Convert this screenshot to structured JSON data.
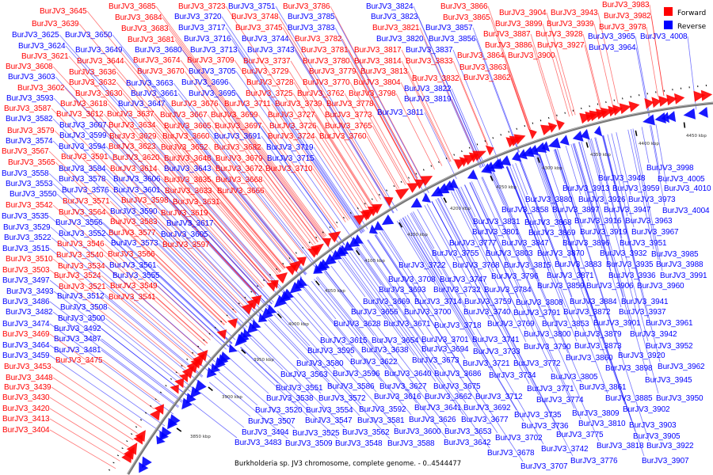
{
  "legend": {
    "forward_label": "Forward",
    "reverse_label": "Reverse",
    "forward_color": "#ff0000",
    "reverse_color": "#0000ff"
  },
  "caption": "Burkholderia sp. JV3 chromosome, complete genome. - 0..4544477",
  "ticks": [
    "3850 kbp",
    "3900 kbp",
    "3950 kbp",
    "4000 kbp",
    "4050 kbp",
    "4100 kbp",
    "4150 kbp",
    "4200 kbp",
    "4250 kbp",
    "4300 kbp",
    "4350 kbp",
    "4400 kbp",
    "4450 kbp"
  ],
  "forward_labels": [
    "BurJV3_3645",
    "BurJV3_3639",
    "BurJV3_3621",
    "BurJV3_3608",
    "BurJV3_3602",
    "BurJV3_3587",
    "BurJV3_3579",
    "BurJV3_3567",
    "BurJV3_3565",
    "BurJV3_3542",
    "BurJV3_3510",
    "BurJV3_3503",
    "BurJV3_3469",
    "BurJV3_3453",
    "BurJV3_3448",
    "BurJV3_3439",
    "BurJV3_3430",
    "BurJV3_3420",
    "BurJV3_3413",
    "BurJV3_3404",
    "BurJV3_3644",
    "BurJV3_3636",
    "BurJV3_3632",
    "BurJV3_3630",
    "BurJV3_3618",
    "BurJV3_3612",
    "BurJV3_3591",
    "BurJV3_3571",
    "BurJV3_3564",
    "BurJV3_3546",
    "BurJV3_3540",
    "BurJV3_3534",
    "BurJV3_3524",
    "BurJV3_3521",
    "BurJV3_3475",
    "BurJV3_3685",
    "BurJV3_3684",
    "BurJV3_3683",
    "BurJV3_3681",
    "BurJV3_3674",
    "BurJV3_3670",
    "BurJV3_3637",
    "BurJV3_3634",
    "BurJV3_3629",
    "BurJV3_3623",
    "BurJV3_3620",
    "BurJV3_3614",
    "BurJV3_3598",
    "BurJV3_3583",
    "BurJV3_3577",
    "BurJV3_3566",
    "BurJV3_3549",
    "BurJV3_3541",
    "BurJV3_3723",
    "BurJV3_3709",
    "BurJV3_3676",
    "BurJV3_3667",
    "BurJV3_3665",
    "BurJV3_3660",
    "BurJV3_3652",
    "BurJV3_3648",
    "BurJV3_3635",
    "BurJV3_3633",
    "BurJV3_3631",
    "BurJV3_3619",
    "BurJV3_3597",
    "BurJV3_3748",
    "BurJV3_3745",
    "BurJV3_3737",
    "BurJV3_3729",
    "BurJV3_3728",
    "BurJV3_3725",
    "BurJV3_3711",
    "BurJV3_3699",
    "BurJV3_3697",
    "BurJV3_3682",
    "BurJV3_3679",
    "BurJV3_3672",
    "BurJV3_3668",
    "BurJV3_3666",
    "BurJV3_3786",
    "BurJV3_3782",
    "BurJV3_3781",
    "BurJV3_3780",
    "BurJV3_3779",
    "BurJV3_3770",
    "BurJV3_3762",
    "BurJV3_3739",
    "BurJV3_3727",
    "BurJV3_3726",
    "BurJV3_3724",
    "BurJV3_3710",
    "BurJV3_3778",
    "BurJV3_3773",
    "BurJV3_3765",
    "BurJV3_3760",
    "BurJV3_3821",
    "BurJV3_3817",
    "BurJV3_3814",
    "BurJV3_3813",
    "BurJV3_3804",
    "BurJV3_3798",
    "BurJV3_3833",
    "BurJV3_3832",
    "BurJV3_3866",
    "BurJV3_3865",
    "BurJV3_3904",
    "BurJV3_3899",
    "BurJV3_3887",
    "BurJV3_3886",
    "BurJV3_3864",
    "BurJV3_3900",
    "BurJV3_3863",
    "BurJV3_3862",
    "BurJV3_3943",
    "BurJV3_3939",
    "BurJV3_3928",
    "BurJV3_3927",
    "BurJV3_3983",
    "BurJV3_3982",
    "BurJV3_3978"
  ],
  "reverse_labels": [
    "BurJV3_3625",
    "BurJV3_3624",
    "BurJV3_3603",
    "BurJV3_3593",
    "BurJV3_3582",
    "BurJV3_3574",
    "BurJV3_3558",
    "BurJV3_3553",
    "BurJV3_3550",
    "BurJV3_3535",
    "BurJV3_3529",
    "BurJV3_3522",
    "BurJV3_3515",
    "BurJV3_3497",
    "BurJV3_3493",
    "BurJV3_3486",
    "BurJV3_3482",
    "BurJV3_3474",
    "BurJV3_3464",
    "BurJV3_3459",
    "BurJV3_3650",
    "BurJV3_3649",
    "BurJV3_3607",
    "BurJV3_3599",
    "BurJV3_3594",
    "BurJV3_3584",
    "BurJV3_3578",
    "BurJV3_3576",
    "BurJV3_3556",
    "BurJV3_3552",
    "BurJV3_3512",
    "BurJV3_3508",
    "BurJV3_3500",
    "BurJV3_3492",
    "BurJV3_3487",
    "BurJV3_3481",
    "BurJV3_3680",
    "BurJV3_3663",
    "BurJV3_3661",
    "BurJV3_3647",
    "BurJV3_3606",
    "BurJV3_3601",
    "BurJV3_3590",
    "BurJV3_3573",
    "BurJV3_3561",
    "BurJV3_3555",
    "BurJV3_3720",
    "BurJV3_3717",
    "BurJV3_3716",
    "BurJV3_3713",
    "BurJV3_3705",
    "BurJV3_3696",
    "BurJV3_3695",
    "BurJV3_3643",
    "BurJV3_3617",
    "BurJV3_3605",
    "BurJV3_3751",
    "BurJV3_3744",
    "BurJV3_3743",
    "BurJV3_3691",
    "BurJV3_3785",
    "BurJV3_3783",
    "BurJV3_3719",
    "BurJV3_3715",
    "BurJV3_3824",
    "BurJV3_3823",
    "BurJV3_3820",
    "BurJV3_3811",
    "BurJV3_3837",
    "BurJV3_3822",
    "BurJV3_3819",
    "BurJV3_3857",
    "BurJV3_3856",
    "BurJV3_3965",
    "BurJV3_3964",
    "BurJV3_4008",
    "BurJV3_3998",
    "BurJV3_3948",
    "BurJV3_4005",
    "BurJV3_3913",
    "BurJV3_3959",
    "BurJV3_4010",
    "BurJV3_3880",
    "BurJV3_3926",
    "BurJV3_3973",
    "BurJV3_3897",
    "BurJV3_3947",
    "BurJV3_4004",
    "BurJV3_3868",
    "BurJV3_3916",
    "BurJV3_3963",
    "BurJV3_3869",
    "BurJV3_3919",
    "BurJV3_3967",
    "BurJV3_3896",
    "BurJV3_3951",
    "BurJV3_3870",
    "BurJV3_3932",
    "BurJV3_3985",
    "BurJV3_3883",
    "BurJV3_3935",
    "BurJV3_3988",
    "BurJV3_3871",
    "BurJV3_3936",
    "BurJV3_3991",
    "BurJV3_3859",
    "BurJV3_3906",
    "BurJV3_3960",
    "BurJV3_3858",
    "BurJV3_3831",
    "BurJV3_3801",
    "BurJV3_3777",
    "BurJV3_3847",
    "BurJV3_3755",
    "BurJV3_3803",
    "BurJV3_3722",
    "BurJV3_3768",
    "BurJV3_3815",
    "BurJV3_3708",
    "BurJV3_3747",
    "BurJV3_3796",
    "BurJV3_3693",
    "BurJV3_3732",
    "BurJV3_3784",
    "BurJV3_3669",
    "BurJV3_3714",
    "BurJV3_3759",
    "BurJV3_3808",
    "BurJV3_3656",
    "BurJV3_3700",
    "BurJV3_3740",
    "BurJV3_3791",
    "BurJV3_3628",
    "BurJV3_3671",
    "BurJV3_3718",
    "BurJV3_3769",
    "BurJV3_3615",
    "BurJV3_3654",
    "BurJV3_3701",
    "BurJV3_3741",
    "BurJV3_3595",
    "BurJV3_3638",
    "BurJV3_3694",
    "BurJV3_3733",
    "BurJV3_3580",
    "BurJV3_3622",
    "BurJV3_3673",
    "BurJV3_3721",
    "BurJV3_3772",
    "BurJV3_3563",
    "BurJV3_3596",
    "BurJV3_3640",
    "BurJV3_3686",
    "BurJV3_3734",
    "BurJV3_3551",
    "BurJV3_3586",
    "BurJV3_3627",
    "BurJV3_3675",
    "BurJV3_3538",
    "BurJV3_3572",
    "BurJV3_3616",
    "BurJV3_3662",
    "BurJV3_3712",
    "BurJV3_3520",
    "BurJV3_3554",
    "BurJV3_3592",
    "BurJV3_3641",
    "BurJV3_3692",
    "BurJV3_3507",
    "BurJV3_3547",
    "BurJV3_3581",
    "BurJV3_3626",
    "BurJV3_3677",
    "BurJV3_3735",
    "BurJV3_3494",
    "BurJV3_3525",
    "BurJV3_3562",
    "BurJV3_3600",
    "BurJV3_3653",
    "BurJV3_3736",
    "BurJV3_3483",
    "BurJV3_3509",
    "BurJV3_3548",
    "BurJV3_3588",
    "BurJV3_3642",
    "BurJV3_3702",
    "BurJV3_3678",
    "BurJV3_3707",
    "BurJV3_3775",
    "BurJV3_3742",
    "BurJV3_3776",
    "BurJV3_3805",
    "BurJV3_3771",
    "BurJV3_3774",
    "BurJV3_3809",
    "BurJV3_3810",
    "BurJV3_3884",
    "BurJV3_3941",
    "BurJV3_3872",
    "BurJV3_3937",
    "BurJV3_3853",
    "BurJV3_3901",
    "BurJV3_3961",
    "BurJV3_3800",
    "BurJV3_3879",
    "BurJV3_3942",
    "BurJV3_3790",
    "BurJV3_3873",
    "BurJV3_3952",
    "BurJV3_3860",
    "BurJV3_3920",
    "BurJV3_3898",
    "BurJV3_3962",
    "BurJV3_3945",
    "BurJV3_3861",
    "BurJV3_3885",
    "BurJV3_3950",
    "BurJV3_3902",
    "BurJV3_3903",
    "BurJV3_3905",
    "BurJV3_3818",
    "BurJV3_3922",
    "BurJV3_3907"
  ]
}
